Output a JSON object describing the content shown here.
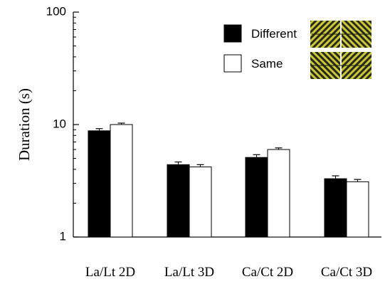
{
  "chart_data": {
    "type": "bar",
    "scale": "log",
    "categories": [
      "La/Lt 2D",
      "La/Lt 3D",
      "Ca/Ct 2D",
      "Ca/Ct 3D"
    ],
    "series": [
      {
        "name": "Different",
        "color": "#000000",
        "values": [
          8.8,
          4.4,
          5.1,
          3.3
        ],
        "errors": [
          0.4,
          0.25,
          0.3,
          0.2
        ]
      },
      {
        "name": "Same",
        "color": "#ffffff",
        "values": [
          10.0,
          4.2,
          6.0,
          3.1
        ],
        "errors": [
          0.3,
          0.2,
          0.2,
          0.15
        ]
      }
    ],
    "ylabel": "Duration (s)",
    "ylim": [
      1,
      100
    ],
    "yticks": [
      {
        "value": 1,
        "label": "1"
      },
      {
        "value": 10,
        "label": "10"
      },
      {
        "value": 100,
        "label": "100"
      }
    ],
    "grid": false,
    "legend": "top-right",
    "legend_image": "diagonal-stripe-texture-pairs",
    "legend_image_colors": [
      "#c8c83a",
      "#2a2a1a"
    ]
  }
}
